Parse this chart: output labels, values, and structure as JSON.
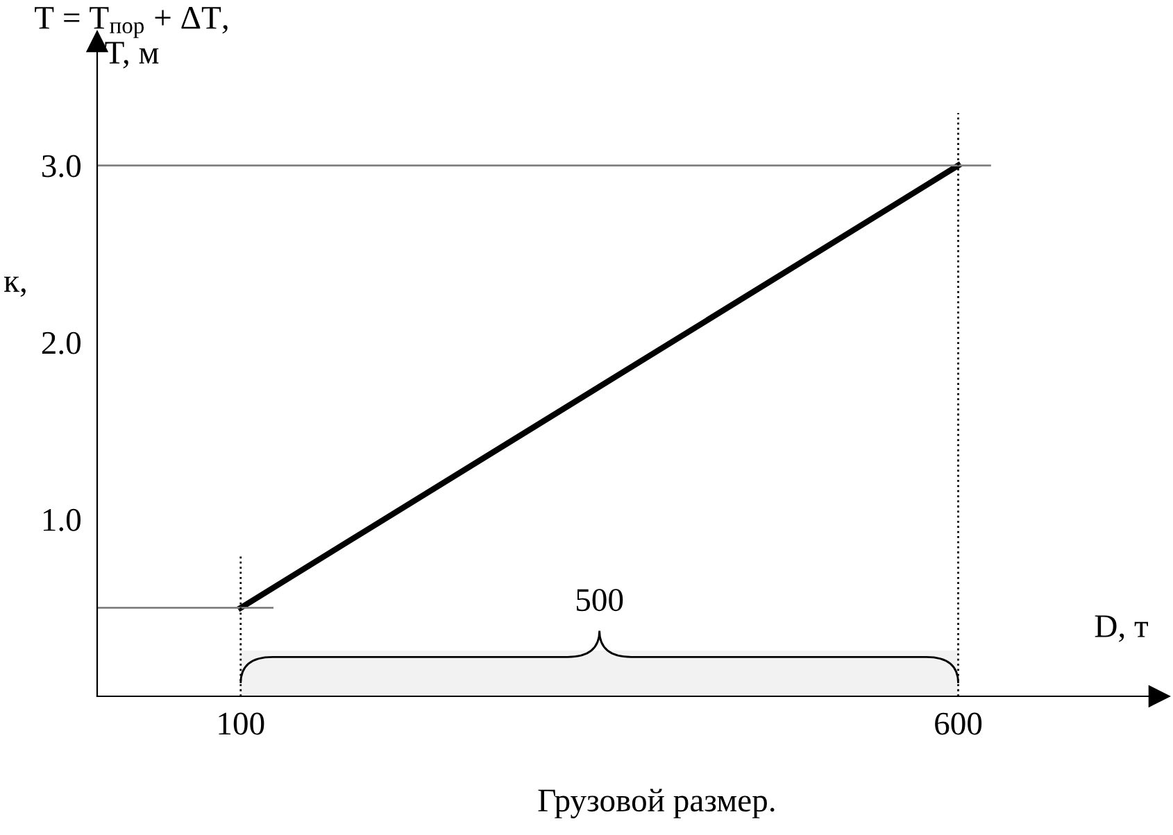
{
  "chart_data": {
    "type": "line",
    "ylabel": "T = T$_{пор}$ + ΔT,\nT, м",
    "xlabel": "D, т",
    "x": [
      100,
      600
    ],
    "series": [
      {
        "color": "#000000",
        "values": [
          0.5,
          3.0
        ]
      }
    ],
    "xlim": [
      0,
      740
    ],
    "ylim": [
      0,
      3.7
    ],
    "xticks": [
      100,
      600
    ],
    "yticks": [
      {
        "value": 1.0,
        "label": "1.0"
      },
      {
        "value": 2.0,
        "label": "2.0"
      },
      {
        "value": 3.0,
        "label": "3.0"
      }
    ],
    "ref_lines": [
      {
        "axis": "y",
        "value": 3.0,
        "color": "#808080",
        "line_style": "solid"
      },
      {
        "axis": "y",
        "value": 0.5,
        "color": "#808080",
        "line_style": "solid"
      },
      {
        "axis": "x",
        "value": 100,
        "color": "#000000",
        "line_style": "dotted"
      },
      {
        "axis": "x",
        "value": 600,
        "color": "#000000",
        "line_style": "dotted"
      }
    ],
    "bands": [
      {
        "axis": "x",
        "from": 100,
        "to": 600,
        "label": "500",
        "color": "#f2f2f2"
      }
    ],
    "annotations": [
      "Грузовой размер.",
      "к,"
    ],
    "grid": false,
    "legend": false
  }
}
